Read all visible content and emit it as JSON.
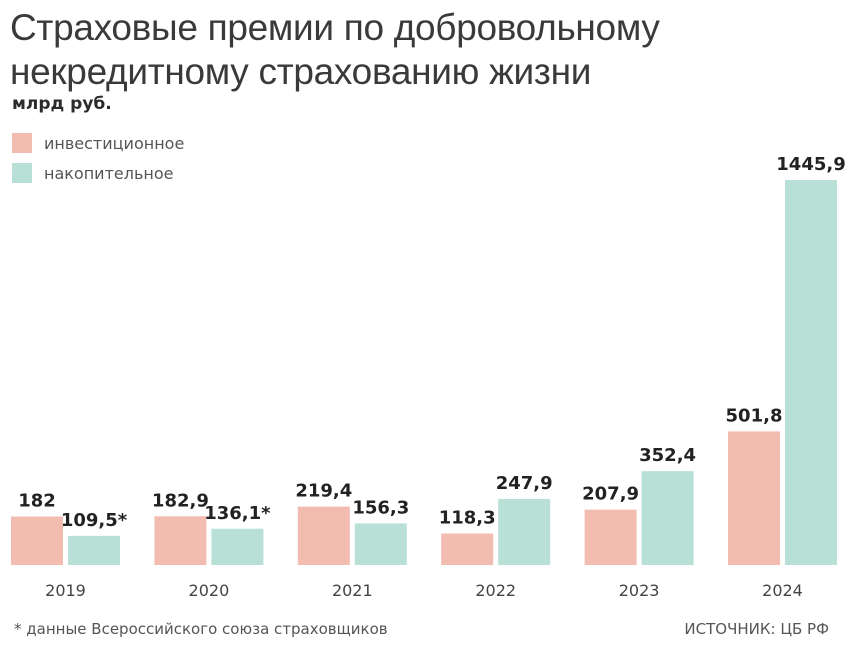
{
  "chart_data": {
    "type": "bar",
    "title": "Страховые премии по добровольному некредитному страхованию жизни",
    "unit": "млрд руб.",
    "categories": [
      "2019",
      "2020",
      "2021",
      "2022",
      "2023",
      "2024"
    ],
    "series": [
      {
        "name": "инвестиционное",
        "color": "#f2bcb1",
        "values": [
          182,
          182.9,
          219.4,
          118.3,
          207.9,
          501.8
        ],
        "labels": [
          "182",
          "182,9",
          "219,4",
          "118,3",
          "207,9",
          "501,8"
        ]
      },
      {
        "name": "накопительное",
        "color": "#b9e0d6",
        "values": [
          109.5,
          136.1,
          156.3,
          247.9,
          352.4,
          1445.9
        ],
        "labels": [
          "109,5*",
          "136,1*",
          "156,3",
          "247,9",
          "352,4",
          "1445,9"
        ]
      }
    ],
    "ylim": [
      0,
      1445.9
    ],
    "grid": false,
    "legend_position": "top-left",
    "footnote": "* данные Всероссийского союза страховщиков",
    "source": "ИСТОЧНИК: ЦБ РФ"
  }
}
